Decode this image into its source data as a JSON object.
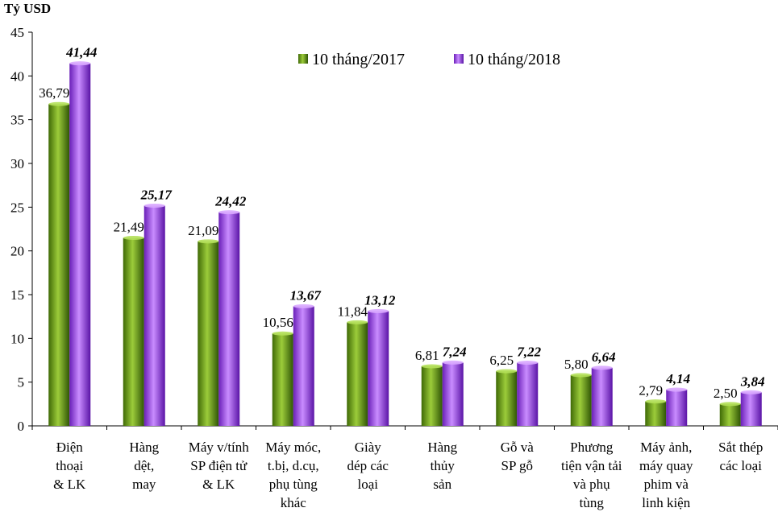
{
  "chart_data": {
    "type": "bar",
    "title": "",
    "ylabel": "Tỷ USD",
    "xlabel": "",
    "ylim": [
      0,
      45
    ],
    "yticks": [
      0,
      5,
      10,
      15,
      20,
      25,
      30,
      35,
      40,
      45
    ],
    "grid": false,
    "legend_position": "top-right",
    "categories": [
      [
        "Điện",
        "thoại",
        "& LK"
      ],
      [
        "Hàng",
        "dệt,",
        "may"
      ],
      [
        "Máy v/tính",
        "SP điện tử",
        "& LK"
      ],
      [
        "Máy móc,",
        "t.bị, d.cụ,",
        "phụ tùng",
        "khác"
      ],
      [
        "Giày",
        "dép các",
        "loại"
      ],
      [
        "Hàng",
        "thủy",
        "sản"
      ],
      [
        "Gỗ và",
        "SP gỗ"
      ],
      [
        "Phương",
        "tiện vận tải",
        "và phụ",
        "tùng"
      ],
      [
        "Máy ảnh,",
        "máy quay",
        "phim và",
        "linh kiện"
      ],
      [
        "Sắt thép",
        "các loại"
      ]
    ],
    "series": [
      {
        "name": "10 tháng/2017",
        "values": [
          36.79,
          21.49,
          21.09,
          10.56,
          11.84,
          6.81,
          6.25,
          5.8,
          2.79,
          2.5
        ],
        "labels": [
          "36,79",
          "21,49",
          "21,09",
          "10,56",
          "11,84",
          "6,81",
          "6,25",
          "5,80",
          "2,79",
          "2,50"
        ],
        "color": "#5a8a10"
      },
      {
        "name": "10 tháng/2018",
        "values": [
          41.44,
          25.17,
          24.42,
          13.67,
          13.12,
          7.24,
          7.22,
          6.64,
          4.14,
          3.84
        ],
        "labels": [
          "41,44",
          "25,17",
          "24,42",
          "13,67",
          "13,12",
          "7,24",
          "7,22",
          "6,64",
          "4,14",
          "3,84"
        ],
        "color": "#8a2be2"
      }
    ]
  }
}
